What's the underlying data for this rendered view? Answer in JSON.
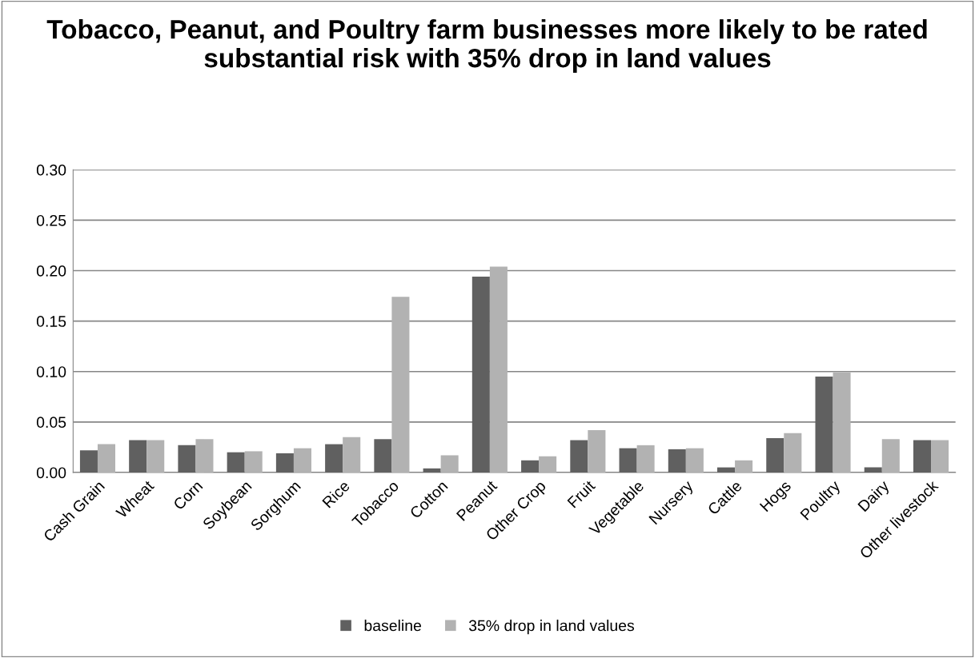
{
  "chart_data": {
    "type": "bar",
    "title": "Tobacco, Peanut, and Poultry farm businesses more likely to be rated substantial risk with 35% drop in land values",
    "categories": [
      "Cash Grain",
      "Wheat",
      "Corn",
      "Soybean",
      "Sorghum",
      "Rice",
      "Tobacco",
      "Cotton",
      "Peanut",
      "Other Crop",
      "Fruit",
      "Vegetable",
      "Nursery",
      "Cattle",
      "Hogs",
      "Poultry",
      "Dairy",
      "Other livestock"
    ],
    "series": [
      {
        "name": "baseline",
        "color": "#606060",
        "values": [
          0.022,
          0.032,
          0.027,
          0.02,
          0.019,
          0.028,
          0.033,
          0.004,
          0.194,
          0.012,
          0.032,
          0.024,
          0.023,
          0.005,
          0.034,
          0.095,
          0.005,
          0.032
        ]
      },
      {
        "name": "35% drop in land values",
        "color": "#b2b2b2",
        "values": [
          0.028,
          0.032,
          0.033,
          0.021,
          0.024,
          0.035,
          0.174,
          0.017,
          0.204,
          0.016,
          0.042,
          0.027,
          0.024,
          0.012,
          0.039,
          0.099,
          0.033,
          0.032
        ]
      }
    ],
    "ylim": [
      0,
      0.3
    ],
    "yticks": [
      {
        "value": 0,
        "label": "0.00"
      },
      {
        "value": 0.05,
        "label": "0.05"
      },
      {
        "value": 0.1,
        "label": "0.10"
      },
      {
        "value": 0.15,
        "label": "0.15"
      },
      {
        "value": 0.2,
        "label": "0.20"
      },
      {
        "value": 0.25,
        "label": "0.25"
      },
      {
        "value": 0.3,
        "label": "0.30"
      }
    ],
    "grid": "y",
    "legend": "bottom"
  }
}
